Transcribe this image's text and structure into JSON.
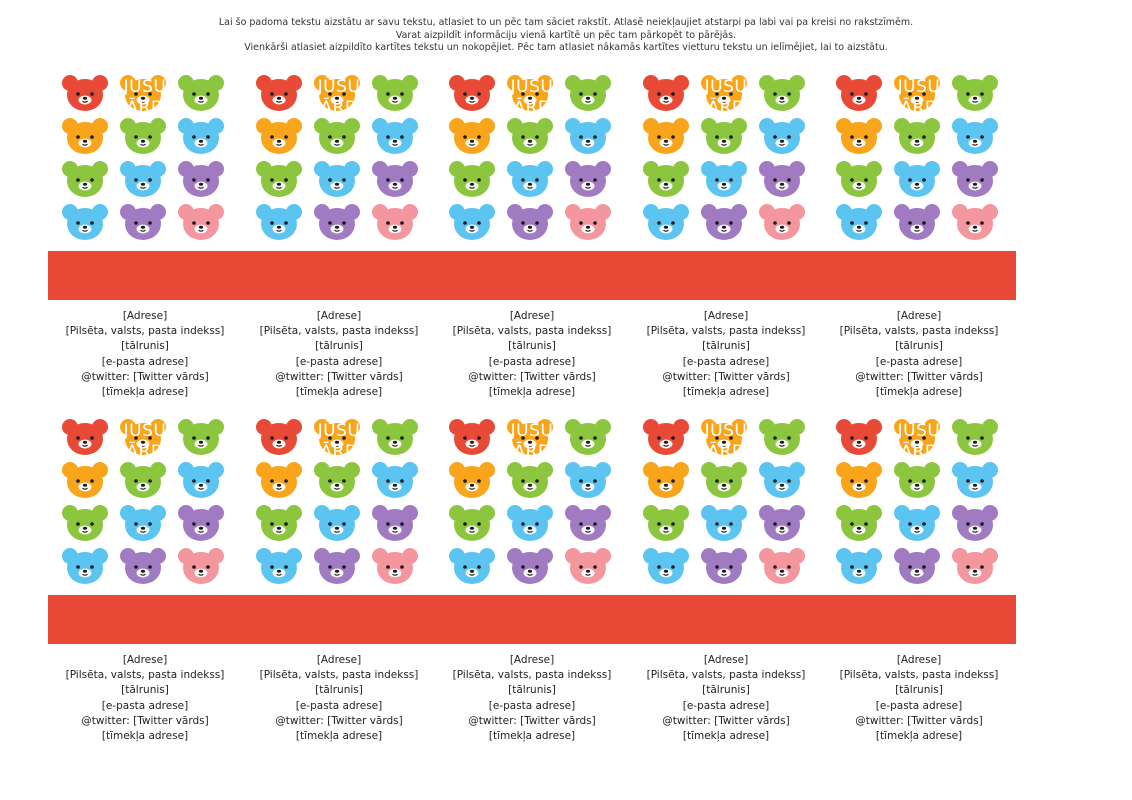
{
  "instructions": [
    "Lai šo padoma tekstu aizstātu ar savu tekstu, atlasiet to un pēc tam sāciet rakstīt. Atlasē neiekļaujiet atstarpi pa labi vai pa kreisi no rakstzīmēm.",
    "Varat aizpildīt informāciju vienā kartītē un pēc tam pārkopēt to pārējās.",
    "Vienkārši atlasiet aizpildīto kartītes tekstu un nokopējiet. Pēc tam atlasiet nākamās kartītes vietturu tekstu un ielīmējiet, lai to aizstātu."
  ],
  "card": {
    "name_line1": "JŪSU",
    "name_line2": "VĀRDS",
    "address": "[Adrese]",
    "city": "[Pilsēta, valsts, pasta indekss]",
    "phone": "[tālrunis]",
    "email": "[e-pasta adrese]",
    "twitter_prefix": "@twitter:",
    "twitter": "[Twitter vārds]",
    "website": "[tīmekļa adrese]"
  },
  "colors": {
    "band": "#e84a37",
    "bears": {
      "red": "#e84a37",
      "orange": "#f9a51c",
      "green": "#8cc63f",
      "blue": "#5bc4f1",
      "purple": "#a07bc1",
      "pink": "#f4969d"
    },
    "face": "#1a1a1a"
  },
  "bear_pattern": [
    [
      "red",
      "orange",
      "green"
    ],
    [
      "orange",
      "green",
      "blue"
    ],
    [
      "green",
      "blue",
      "purple"
    ],
    [
      "blue",
      "purple",
      "pink"
    ]
  ]
}
